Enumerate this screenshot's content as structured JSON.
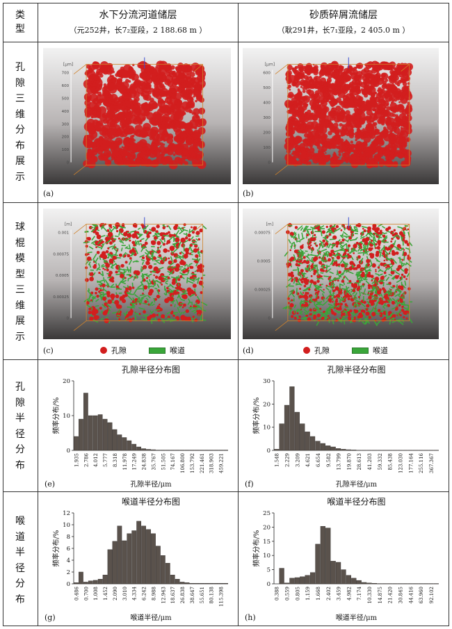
{
  "table": {
    "type_header": "类型",
    "col1_title": "水下分流河道储层",
    "col1_sub": "（元252井，长7₂亚段，2 188.68 m ）",
    "col2_title": "砂质碎屑流储层",
    "col2_sub": "（耿291井，长7₁亚段，2 405.0 m ）"
  },
  "rows": [
    {
      "label_chars": [
        "孔",
        "隙",
        "三",
        "维",
        "分",
        "布",
        "展",
        "示"
      ]
    },
    {
      "label_chars": [
        "球",
        "棍",
        "模",
        "型",
        "三",
        "维",
        "展",
        "示"
      ]
    },
    {
      "label_chars": [
        "孔",
        "隙",
        "半",
        "径",
        "分",
        "布"
      ]
    },
    {
      "label_chars": [
        "喉",
        "道",
        "半",
        "径",
        "分",
        "布"
      ]
    }
  ],
  "panels": {
    "a": {
      "tag": "(a)",
      "unit": "[μm]",
      "ticks": [
        "700",
        "600",
        "500",
        "400",
        "300",
        "200",
        "100",
        "0"
      ]
    },
    "b": {
      "tag": "(b)",
      "unit": "[μm]",
      "ticks": [
        "600",
        "500",
        "400",
        "300",
        "200",
        "100",
        "0"
      ]
    },
    "c": {
      "tag": "(c)",
      "unit": "[m]",
      "ticks": [
        "0.001",
        "0.00075",
        "0.0005",
        "0.00025",
        "0"
      ]
    },
    "d": {
      "tag": "(d)",
      "unit": "[m]",
      "ticks": [
        "0.00075",
        "0.0005",
        "0.00025",
        "0"
      ]
    },
    "e": {
      "tag": "(e)"
    },
    "f": {
      "tag": "(f)"
    },
    "g": {
      "tag": "(g)"
    },
    "h": {
      "tag": "(h)"
    }
  },
  "legend": {
    "pore": "孔隙",
    "throat": "喉道"
  },
  "colors": {
    "pore": "#d21e1e",
    "throat": "#3aa63a",
    "bar": "#5a524c"
  },
  "chart_data": [
    {
      "id": "e",
      "type": "bar",
      "title": "孔隙半径分布图",
      "xlabel": "孔隙半径/μm",
      "ylabel": "频率分布/%",
      "ylim": [
        0,
        20
      ],
      "yticks": [
        0,
        10,
        20
      ],
      "tick_labels": [
        "1.935",
        "2.786",
        "4.012",
        "5.777",
        "8.318",
        "11.978",
        "17.249",
        "24.838",
        "35.767",
        "51.505",
        "74.167",
        "106.800",
        "153.792",
        "221.461",
        "318.903",
        "459.221"
      ],
      "values": [
        4,
        9,
        16.5,
        10,
        10,
        10.3,
        9,
        8,
        6,
        4.5,
        3.7,
        2.8,
        1.8,
        1,
        0.5,
        0.3,
        0.2,
        0.1,
        0.1,
        0.1,
        0.1,
        0.1,
        0.1,
        0.1,
        0.1,
        0.1,
        0.1,
        0.1,
        0.1,
        0.1,
        0.1,
        0.1
      ]
    },
    {
      "id": "f",
      "type": "bar",
      "title": "孔隙半径分布图",
      "xlabel": "孔隙半径/μm",
      "ylabel": "频率分布/%",
      "ylim": [
        0,
        30
      ],
      "yticks": [
        0,
        10,
        20,
        30
      ],
      "tick_labels": [
        "1.548",
        "2.229",
        "3.209",
        "4.621",
        "6.654",
        "9.582",
        "13.799",
        "19.870",
        "28.613",
        "41.203",
        "59.332",
        "85.438",
        "123.030",
        "177.164",
        "255.116",
        "367.367"
      ],
      "values": [
        0.5,
        11.5,
        19.5,
        27.5,
        16.5,
        11.5,
        8,
        6,
        4,
        3,
        2,
        1.5,
        0.8,
        0.5,
        0.3,
        0.2,
        0.1,
        0.1,
        0.1,
        0.1,
        0.1,
        0.1,
        0.1,
        0.1,
        0.1,
        0.1,
        0.1,
        0.1,
        0.1,
        0.1,
        0.1,
        0.1
      ]
    },
    {
      "id": "g",
      "type": "bar",
      "title": "喉道半径分布图",
      "xlabel": "喉道半径/μm",
      "ylabel": "频率分布/%",
      "ylim": [
        0,
        12
      ],
      "yticks": [
        0,
        2,
        4,
        6,
        8,
        10,
        12
      ],
      "tick_labels": [
        "0.486",
        "0.700",
        "1.008",
        "1.452",
        "2.090",
        "3.010",
        "4.334",
        "6.242",
        "8.988",
        "12.943",
        "18.637",
        "26.838",
        "38.647",
        "55.651",
        "80.138",
        "115.398"
      ],
      "values": [
        0.2,
        2,
        0.3,
        0.5,
        0.6,
        0.8,
        1.5,
        5.8,
        7.2,
        9.8,
        7.3,
        8.5,
        9,
        10.6,
        9.8,
        9.2,
        8.5,
        6.4,
        4.8,
        3.5,
        1.5,
        0.8,
        0.3,
        0.2,
        0.1,
        0.1,
        0.1,
        0.1,
        0.1,
        0.1,
        0.1,
        0.1
      ]
    },
    {
      "id": "h",
      "type": "bar",
      "title": "喉道半径分布图",
      "xlabel": "喉道半径/μm",
      "ylabel": "频率分布/%",
      "ylim": [
        0,
        25
      ],
      "yticks": [
        0,
        5,
        10,
        15,
        20,
        25
      ],
      "tick_labels": [
        "0.388",
        "0.559",
        "0.805",
        "1.159",
        "1.668",
        "2.402",
        "3.459",
        "4.982",
        "7.174",
        "10.330",
        "14.875",
        "21.420",
        "30.845",
        "44.416",
        "63.960",
        "92.102"
      ],
      "values": [
        0,
        5.5,
        0.3,
        2,
        2.2,
        2.5,
        3,
        4,
        14,
        20.3,
        19.7,
        8,
        7.6,
        5,
        3,
        2,
        1.2,
        0.5,
        0.3,
        0.2,
        0.1,
        0.1,
        0.1,
        0.1,
        0.1,
        0.1,
        0.1,
        0.1,
        0.1,
        0.1,
        0.1,
        0.1
      ]
    }
  ]
}
